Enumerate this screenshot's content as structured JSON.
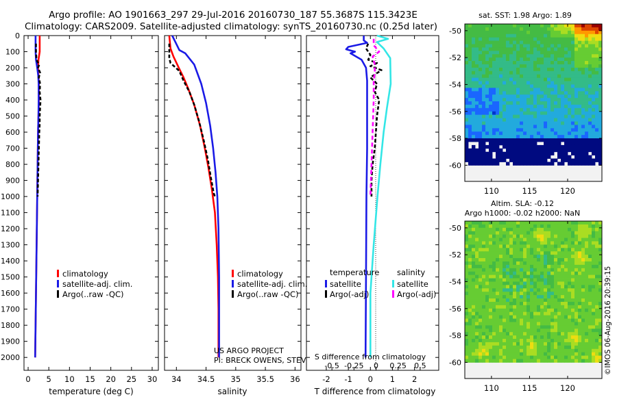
{
  "header": {
    "title_line1": "Argo profile: AO 1901663_297 29-Jul-2016 20160730_187 55.3687S 115.3423E",
    "title_line2": "Climatology: CARS2009. Satellite-adjusted climatology: synTS_20160730.nc (0.25d later)"
  },
  "colors": {
    "climatology": "#ff0000",
    "satellite": "#1a1ae6",
    "argo": "#000000",
    "salinity_satellite": "#33e6e6",
    "salinity_argo": "#ff00ff",
    "map_background": "#f2f2f2"
  },
  "credits": {
    "project_line1": "US ARGO PROJECT",
    "project_line2": "PI: BRECK OWENS, STEVE JAYNE, P.E. ROBBINS",
    "stamp": "©IMOS 06-Aug-2016 20:39:15"
  },
  "chart_data": [
    {
      "id": "temperature",
      "type": "line",
      "xlabel": "temperature (deg C)",
      "ylabel": "",
      "xlim": [
        -1,
        31.5
      ],
      "ylim": [
        2080,
        0
      ],
      "xticks": [
        0,
        5,
        10,
        15,
        20,
        25,
        30
      ],
      "yticks": [
        0,
        100,
        200,
        300,
        400,
        500,
        600,
        700,
        800,
        900,
        1000,
        1100,
        1200,
        1300,
        1400,
        1500,
        1600,
        1700,
        1800,
        1900,
        2000
      ],
      "legend": {
        "placement": "lower-center",
        "entries": [
          {
            "label": "climatology",
            "color": "#ff0000"
          },
          {
            "label": "satellite-adj. clim.",
            "color": "#1a1ae6"
          },
          {
            "label": "Argo(..raw -QC)",
            "color": "#000000"
          }
        ]
      },
      "series": [
        {
          "name": "climatology",
          "color": "#ff0000",
          "dash": "",
          "points": [
            [
              2.8,
              0
            ],
            [
              2.8,
              100
            ],
            [
              2.5,
              150
            ],
            [
              2.4,
              200
            ],
            [
              2.5,
              250
            ],
            [
              2.6,
              300
            ],
            [
              2.6,
              400
            ],
            [
              2.5,
              500
            ],
            [
              2.4,
              600
            ],
            [
              2.35,
              700
            ],
            [
              2.3,
              800
            ],
            [
              2.25,
              900
            ],
            [
              2.2,
              1000
            ],
            [
              2.1,
              1200
            ],
            [
              2.0,
              1400
            ],
            [
              1.9,
              1600
            ],
            [
              1.8,
              1800
            ],
            [
              1.7,
              2000
            ]
          ]
        },
        {
          "name": "satellite-adj. clim.",
          "color": "#1a1ae6",
          "dash": "",
          "points": [
            [
              1.8,
              0
            ],
            [
              1.8,
              100
            ],
            [
              1.9,
              150
            ],
            [
              2.2,
              200
            ],
            [
              2.45,
              250
            ],
            [
              2.55,
              300
            ],
            [
              2.55,
              400
            ],
            [
              2.5,
              500
            ],
            [
              2.4,
              600
            ],
            [
              2.35,
              700
            ],
            [
              2.3,
              800
            ],
            [
              2.25,
              900
            ],
            [
              2.2,
              1000
            ],
            [
              2.1,
              1200
            ],
            [
              2.0,
              1400
            ],
            [
              1.9,
              1600
            ],
            [
              1.8,
              1800
            ],
            [
              1.7,
              2000
            ]
          ]
        },
        {
          "name": "Argo(..raw -QC)",
          "color": "#000000",
          "dash": "5,3",
          "points": [
            [
              1.9,
              50
            ],
            [
              1.9,
              100
            ],
            [
              2.0,
              140
            ],
            [
              2.2,
              160
            ],
            [
              2.7,
              180
            ],
            [
              2.4,
              200
            ],
            [
              2.9,
              230
            ],
            [
              2.6,
              260
            ],
            [
              2.9,
              300
            ],
            [
              2.8,
              350
            ],
            [
              3.0,
              400
            ],
            [
              2.8,
              500
            ],
            [
              2.8,
              550
            ],
            [
              2.7,
              600
            ],
            [
              2.6,
              700
            ],
            [
              2.5,
              800
            ],
            [
              2.4,
              900
            ],
            [
              2.3,
              1000
            ]
          ]
        }
      ]
    },
    {
      "id": "salinity",
      "type": "line",
      "xlabel": "salinity",
      "ylabel": "",
      "xlim": [
        33.8,
        36.1
      ],
      "ylim": [
        2080,
        0
      ],
      "xticks": [
        34,
        34.5,
        35,
        35.5,
        36
      ],
      "legend": {
        "placement": "lower-right",
        "entries": [
          {
            "label": "climatology",
            "color": "#ff0000"
          },
          {
            "label": "satellite-adj. clim.",
            "color": "#1a1ae6"
          },
          {
            "label": "Argo(..raw -QC)",
            "color": "#000000"
          }
        ]
      },
      "series": [
        {
          "name": "climatology",
          "color": "#ff0000",
          "dash": "",
          "points": [
            [
              33.88,
              0
            ],
            [
              33.9,
              80
            ],
            [
              33.95,
              130
            ],
            [
              34.04,
              200
            ],
            [
              34.12,
              260
            ],
            [
              34.2,
              330
            ],
            [
              34.3,
              430
            ],
            [
              34.4,
              560
            ],
            [
              34.48,
              700
            ],
            [
              34.54,
              820
            ],
            [
              34.6,
              960
            ],
            [
              34.65,
              1100
            ],
            [
              34.68,
              1300
            ],
            [
              34.7,
              1500
            ],
            [
              34.71,
              1700
            ],
            [
              34.71,
              1900
            ],
            [
              34.71,
              2000
            ]
          ]
        },
        {
          "name": "satellite-adj. clim.",
          "color": "#1a1ae6",
          "dash": "",
          "points": [
            [
              33.93,
              0
            ],
            [
              34.05,
              90
            ],
            [
              34.15,
              110
            ],
            [
              34.3,
              180
            ],
            [
              34.42,
              300
            ],
            [
              34.5,
              420
            ],
            [
              34.57,
              560
            ],
            [
              34.62,
              700
            ],
            [
              34.66,
              850
            ],
            [
              34.69,
              1000
            ],
            [
              34.71,
              1200
            ],
            [
              34.72,
              1500
            ],
            [
              34.72,
              2000
            ]
          ]
        },
        {
          "name": "Argo(..raw -QC)",
          "color": "#000000",
          "dash": "5,3",
          "points": [
            [
              33.88,
              50
            ],
            [
              33.88,
              140
            ],
            [
              33.9,
              170
            ],
            [
              34.05,
              220
            ],
            [
              34.12,
              280
            ],
            [
              34.22,
              350
            ],
            [
              34.3,
              430
            ],
            [
              34.38,
              530
            ],
            [
              34.46,
              650
            ],
            [
              34.53,
              770
            ],
            [
              34.58,
              880
            ],
            [
              34.63,
              980
            ],
            [
              34.65,
              1000
            ]
          ]
        }
      ]
    },
    {
      "id": "difference",
      "type": "line",
      "xlabel": "T difference from climatology",
      "secondary_xlabel": "S difference from climatology",
      "ylabel": "",
      "xlim": [
        -2.9,
        3.1
      ],
      "ylim": [
        2080,
        0
      ],
      "xticks": [
        -2,
        -1,
        0,
        1,
        2
      ],
      "secondary_xticks": [
        -0.5,
        -0.25,
        0,
        0.25,
        0.5
      ],
      "legend": {
        "placement": "lower-center",
        "groups": [
          {
            "title": "temperature",
            "entries": [
              {
                "label": "satellite",
                "color": "#1a1ae6"
              },
              {
                "label": "Argo(-adj)",
                "color": "#000000"
              }
            ]
          },
          {
            "title": "salinity",
            "entries": [
              {
                "label": "satellite",
                "color": "#33e6e6"
              },
              {
                "label": "Argo(-adj)",
                "color": "#ff00ff"
              }
            ]
          }
        ]
      },
      "series": [
        {
          "name": "T satellite",
          "color": "#1a1ae6",
          "dash": "",
          "points": [
            [
              -0.3,
              0
            ],
            [
              -0.3,
              30
            ],
            [
              -0.15,
              45
            ],
            [
              -1.0,
              70
            ],
            [
              -1.1,
              85
            ],
            [
              -0.7,
              100
            ],
            [
              -0.9,
              110
            ],
            [
              -0.4,
              150
            ],
            [
              -0.2,
              200
            ],
            [
              -0.15,
              280
            ],
            [
              -0.15,
              400
            ],
            [
              -0.15,
              700
            ],
            [
              -0.18,
              1000
            ],
            [
              -0.2,
              1500
            ],
            [
              -0.22,
              2000
            ]
          ]
        },
        {
          "name": "T Argo(-adj)",
          "color": "#000000",
          "dash": "5,3",
          "points": [
            [
              -0.1,
              50
            ],
            [
              -0.2,
              80
            ],
            [
              0.0,
              120
            ],
            [
              -0.1,
              150
            ],
            [
              0.3,
              170
            ],
            [
              0.0,
              190
            ],
            [
              0.5,
              215
            ],
            [
              0.0,
              260
            ],
            [
              0.3,
              300
            ],
            [
              0.2,
              350
            ],
            [
              0.4,
              400
            ],
            [
              0.3,
              500
            ],
            [
              0.25,
              600
            ],
            [
              0.2,
              700
            ],
            [
              0.1,
              800
            ],
            [
              0.05,
              900
            ],
            [
              0.05,
              1000
            ]
          ]
        },
        {
          "name": "S satellite",
          "color": "#33e6e6",
          "dash": "",
          "points": [
            [
              0.3,
              0
            ],
            [
              0.8,
              20
            ],
            [
              0.3,
              40
            ],
            [
              0.6,
              80
            ],
            [
              0.9,
              140
            ],
            [
              0.92,
              300
            ],
            [
              0.75,
              450
            ],
            [
              0.6,
              600
            ],
            [
              0.45,
              800
            ],
            [
              0.32,
              1000
            ],
            [
              0.15,
              1300
            ],
            [
              0.0,
              1600
            ],
            [
              0.0,
              2000
            ]
          ]
        },
        {
          "name": "S Argo(-adj)",
          "color": "#ff00ff",
          "dash": "6,4",
          "points": [
            [
              0.15,
              20
            ],
            [
              0.15,
              60
            ],
            [
              0.4,
              100
            ],
            [
              0.1,
              130
            ],
            [
              0.2,
              180
            ],
            [
              0.2,
              230
            ],
            [
              0.15,
              280
            ],
            [
              0.15,
              400
            ],
            [
              0.1,
              600
            ],
            [
              0.05,
              800
            ],
            [
              0.0,
              1000
            ]
          ]
        }
      ]
    },
    {
      "id": "sst_map",
      "type": "heatmap",
      "title": "sat. SST: 1.98 Argo: 1.89",
      "xlim": [
        106.5,
        124.5
      ],
      "ylim": [
        -61.2,
        -49.5
      ],
      "xticks": [
        110,
        115,
        120
      ],
      "yticks": [
        -50,
        -52,
        -54,
        -56,
        -58,
        -60
      ],
      "field_extent": [
        106.5,
        124.5,
        -60,
        -49.5
      ],
      "palette": "jet",
      "colors": [
        "#000a80",
        "#0033cc",
        "#1a66ff",
        "#22aadd",
        "#33bb88",
        "#44bb44",
        "#66cc33",
        "#aadd22",
        "#eedd11",
        "#ff9900",
        "#dd4400",
        "#990000"
      ]
    },
    {
      "id": "sla_map",
      "type": "heatmap",
      "title": "Altim. SLA: -0.12",
      "subtitle": "Argo h1000: -0.02 h2000: NaN",
      "xlim": [
        106.5,
        124.5
      ],
      "ylim": [
        -61.2,
        -49.5
      ],
      "xticks": [
        110,
        115,
        120
      ],
      "yticks": [
        -50,
        -52,
        -54,
        -56,
        -58,
        -60
      ],
      "field_extent": [
        106.5,
        124.5,
        -60,
        -49.5
      ],
      "palette": "jet",
      "colors": [
        "#22aadd",
        "#33bb88",
        "#44bb44",
        "#66cc33",
        "#aadd22",
        "#eedd11"
      ]
    }
  ]
}
